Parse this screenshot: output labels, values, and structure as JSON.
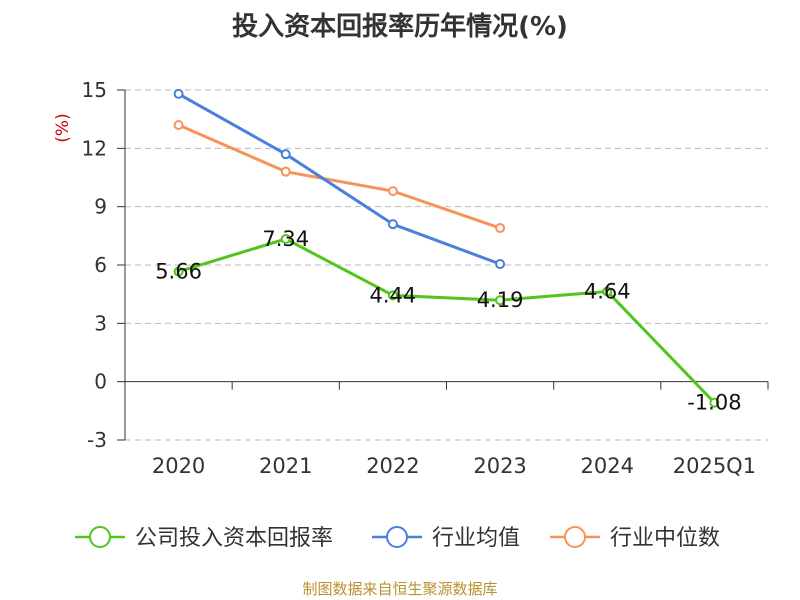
{
  "chart_data": {
    "type": "line",
    "title": "投入资本回报率历年情况(%)",
    "ylabel": "(%)",
    "categories": [
      "2020",
      "2021",
      "2022",
      "2023",
      "2024",
      "2025Q1"
    ],
    "ylim": [
      -3,
      15
    ],
    "yticks": [
      -3,
      0,
      3,
      6,
      9,
      12,
      15
    ],
    "grid": true,
    "legend_position": "bottom",
    "series": [
      {
        "name": "公司投入资本回报率",
        "color": "#52c41a",
        "values": [
          5.66,
          7.34,
          4.44,
          4.19,
          4.64,
          -1.08
        ],
        "labels": [
          "5.66",
          "7.34",
          "4.44",
          "4.19",
          "4.64",
          "-1.08"
        ]
      },
      {
        "name": "行业均值",
        "color": "#4a7fdc",
        "values": [
          14.8,
          11.7,
          8.1,
          6.05,
          null,
          null
        ]
      },
      {
        "name": "行业中位数",
        "color": "#f79358",
        "values": [
          13.2,
          10.8,
          9.8,
          7.9,
          null,
          null
        ]
      }
    ]
  },
  "source": "制图数据来自恒生聚源数据库",
  "ylabel_color": "#cc0000"
}
